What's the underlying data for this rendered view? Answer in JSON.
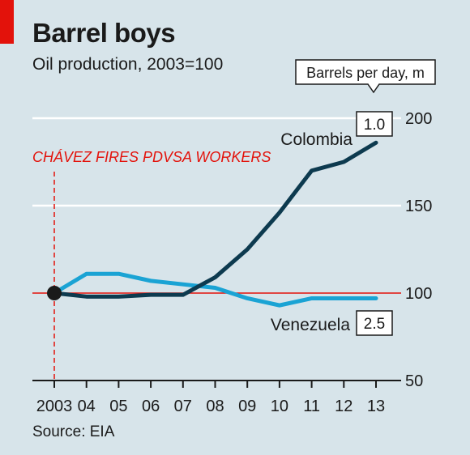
{
  "title": "Barrel boys",
  "subtitle": "Oil production, 2003=100",
  "source": "Source: EIA",
  "units_label": "Barrels per day, m",
  "annotation": "CHÁVEZ FIRES PDVSA WORKERS",
  "colors": {
    "background": "#d7e4ea",
    "colombia": "#0d3a4f",
    "venezuela": "#1aa3d4",
    "accent_red": "#e3120b"
  },
  "chart_data": {
    "type": "line",
    "x": [
      "2003",
      "04",
      "05",
      "06",
      "07",
      "08",
      "09",
      "10",
      "11",
      "12",
      "13"
    ],
    "ylim": [
      50,
      200
    ],
    "y_ticks": [
      "50",
      "100",
      "150",
      "200"
    ],
    "y_axis_side": "right",
    "series": [
      {
        "name": "Colombia",
        "end_label": "1.0",
        "color": "#0d3a4f",
        "values": [
          100,
          98,
          98,
          99,
          99,
          109,
          125,
          146,
          170,
          175,
          186
        ]
      },
      {
        "name": "Venezuela",
        "end_label": "2.5",
        "color": "#1aa3d4",
        "values": [
          100,
          111,
          111,
          107,
          105,
          103,
          97,
          93,
          97,
          97,
          97
        ]
      }
    ],
    "reference_line": 100,
    "event": {
      "x": "2003",
      "label": "CHÁVEZ FIRES PDVSA WORKERS"
    }
  }
}
